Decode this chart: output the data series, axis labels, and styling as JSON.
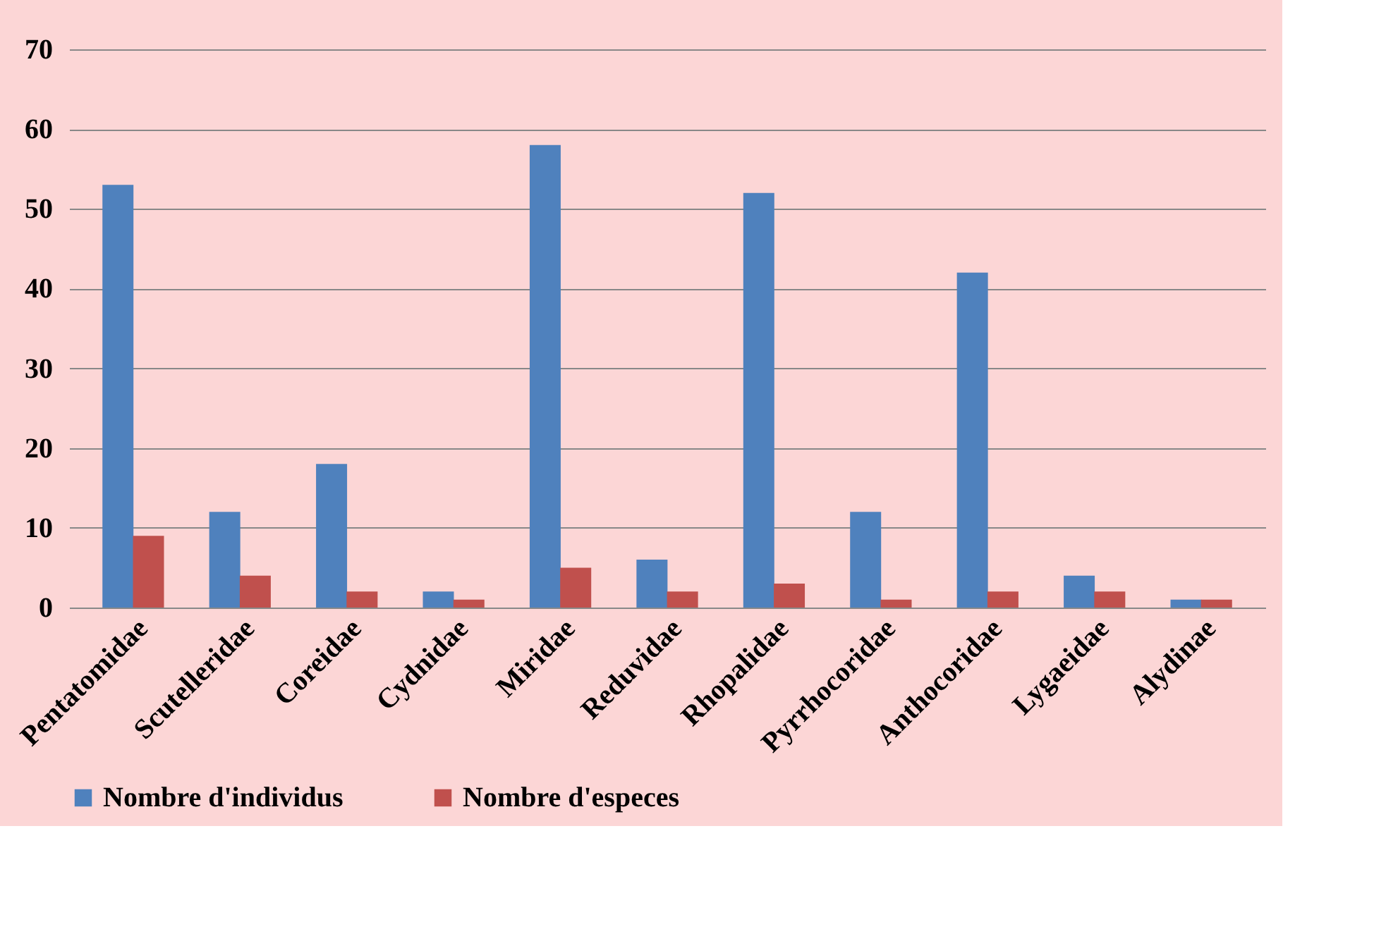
{
  "chart_data": {
    "type": "bar",
    "categories": [
      "Pentatomidae",
      "Scutelleridae",
      "Coreidae",
      "Cydnidae",
      "Miridae",
      "Reduvidae",
      "Rhopalidae",
      "Pyrrhocoridae",
      "Anthocoridae",
      "Lygaeidae",
      "Alydinae"
    ],
    "series": [
      {
        "name": "Nombre d'individus",
        "color": "#4f81bd",
        "values": [
          53,
          12,
          18,
          2,
          58,
          6,
          52,
          12,
          42,
          4,
          1
        ]
      },
      {
        "name": "Nombre d'especes",
        "color": "#c0504d",
        "values": [
          9,
          4,
          2,
          1,
          5,
          2,
          3,
          1,
          2,
          2,
          1
        ]
      }
    ],
    "ylim": [
      0,
      70
    ],
    "yticks": [
      0,
      10,
      20,
      30,
      40,
      50,
      60,
      70
    ],
    "grid": "y",
    "legend": "bottom"
  }
}
